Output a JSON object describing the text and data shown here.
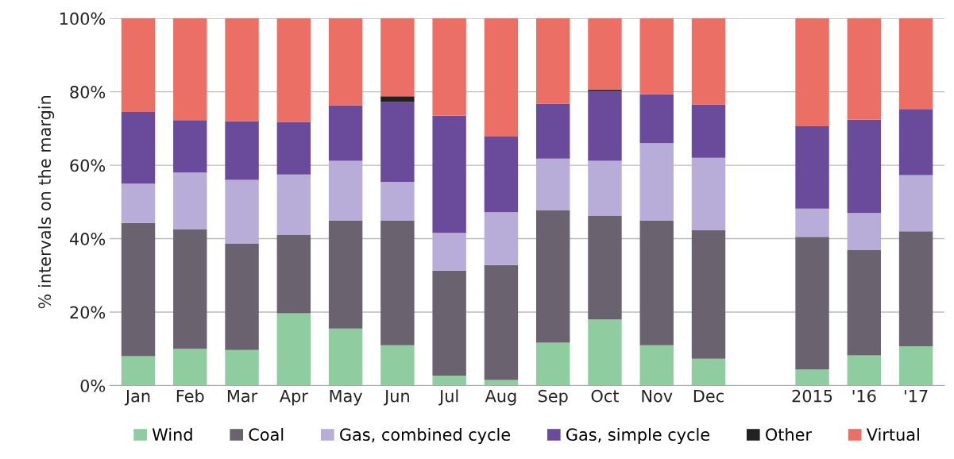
{
  "chart_data": {
    "type": "bar",
    "stacked": true,
    "ylabel": "% intervals on the margin",
    "categories": [
      "Jan",
      "Feb",
      "Mar",
      "Apr",
      "May",
      "Jun",
      "Jul",
      "Aug",
      "Sep",
      "Oct",
      "Nov",
      "Dec",
      null,
      "2015",
      "'16",
      "'17"
    ],
    "series": [
      {
        "name": "Wind",
        "color": "#8fcca0",
        "values": [
          8,
          10,
          9.7,
          19.7,
          15.5,
          11,
          2.7,
          1.5,
          11.7,
          18,
          11,
          7.3,
          null,
          4.4,
          8.2,
          10.7
        ]
      },
      {
        "name": "Coal",
        "color": "#6b6270",
        "values": [
          36.3,
          32.6,
          29,
          21.3,
          29.5,
          34,
          28.6,
          31.3,
          36.1,
          28.3,
          34,
          35,
          null,
          36.1,
          28.8,
          31.3
        ]
      },
      {
        "name": "Gas, combined cycle",
        "color": "#b8acd8",
        "values": [
          10.7,
          15.4,
          17.3,
          16.5,
          16.2,
          10.5,
          10.3,
          14.4,
          14,
          14.9,
          21,
          19.7,
          null,
          7.7,
          10,
          15.3
        ]
      },
      {
        "name": "Gas, simple cycle",
        "color": "#6a4a9a",
        "values": [
          19.5,
          14.3,
          16,
          14.3,
          15.1,
          21.7,
          31.9,
          20.6,
          15,
          19,
          13.3,
          14.5,
          null,
          22.4,
          25.4,
          18
        ]
      },
      {
        "name": "Other",
        "color": "#222222",
        "values": [
          0,
          0,
          0,
          0,
          0,
          1.6,
          0,
          0,
          0,
          0.4,
          0,
          0,
          null,
          0,
          0,
          0
        ]
      },
      {
        "name": "Virtual",
        "color": "#ec6f66",
        "values": [
          25.5,
          27.7,
          28,
          28.2,
          23.7,
          21.2,
          26.5,
          32.2,
          23.2,
          19.4,
          20.7,
          23.5,
          null,
          29.4,
          27.6,
          24.7
        ]
      }
    ],
    "ylim": [
      0,
      100
    ],
    "yticks": [
      {
        "value": 0,
        "label": "0%"
      },
      {
        "value": 20,
        "label": "20%"
      },
      {
        "value": 40,
        "label": "40%"
      },
      {
        "value": 60,
        "label": "60%"
      },
      {
        "value": 80,
        "label": "80%"
      },
      {
        "value": 100,
        "label": "100%"
      }
    ],
    "grid": "y",
    "legend": "bottom"
  }
}
